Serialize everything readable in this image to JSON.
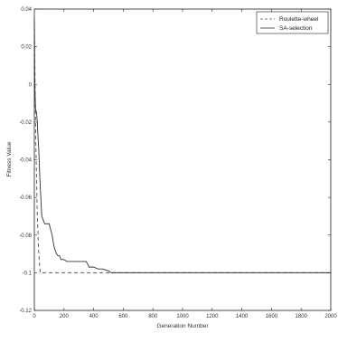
{
  "chart_data": {
    "type": "line",
    "xlabel": "Generation Number",
    "ylabel": "Fitness Value",
    "xlim": [
      0,
      2000
    ],
    "ylim": [
      -0.12,
      0.04
    ],
    "xticks": [
      0,
      200,
      400,
      600,
      800,
      1000,
      1200,
      1400,
      1600,
      1800,
      2000
    ],
    "yticks": [
      -0.12,
      -0.1,
      -0.08,
      -0.06,
      -0.04,
      -0.02,
      0,
      0.02,
      0.04
    ],
    "ytick_labels": [
      "-0.12",
      "-0.1",
      "-0.08",
      "-0.06",
      "-0.04",
      "-0.02",
      "0",
      "0.02",
      "0.04"
    ],
    "grid": false,
    "legend_position": "top-right",
    "series": [
      {
        "name": "Roulette-wheel",
        "style": "dashed",
        "color": "#555555",
        "x": [
          0,
          2,
          5,
          10,
          15,
          20,
          25,
          30,
          35,
          40,
          2000
        ],
        "y": [
          0.04,
          0.02,
          0.0,
          -0.03,
          -0.05,
          -0.07,
          -0.08,
          -0.09,
          -0.095,
          -0.1,
          -0.1
        ]
      },
      {
        "name": "SA-selection",
        "style": "solid",
        "color": "#333333",
        "x": [
          0,
          3,
          8,
          15,
          20,
          25,
          30,
          35,
          40,
          45,
          50,
          60,
          70,
          80,
          100,
          120,
          130,
          140,
          150,
          160,
          170,
          180,
          200,
          220,
          250,
          280,
          320,
          350,
          370,
          400,
          430,
          460,
          500,
          520,
          550,
          600,
          700,
          2000
        ],
        "y": [
          0.035,
          0.0,
          -0.013,
          -0.015,
          -0.02,
          -0.028,
          -0.035,
          -0.045,
          -0.055,
          -0.062,
          -0.07,
          -0.072,
          -0.074,
          -0.074,
          -0.074,
          -0.08,
          -0.085,
          -0.088,
          -0.09,
          -0.091,
          -0.091,
          -0.093,
          -0.093,
          -0.094,
          -0.094,
          -0.094,
          -0.094,
          -0.094,
          -0.097,
          -0.097,
          -0.098,
          -0.098,
          -0.099,
          -0.1,
          -0.1,
          -0.1,
          -0.1,
          -0.1
        ]
      }
    ]
  }
}
